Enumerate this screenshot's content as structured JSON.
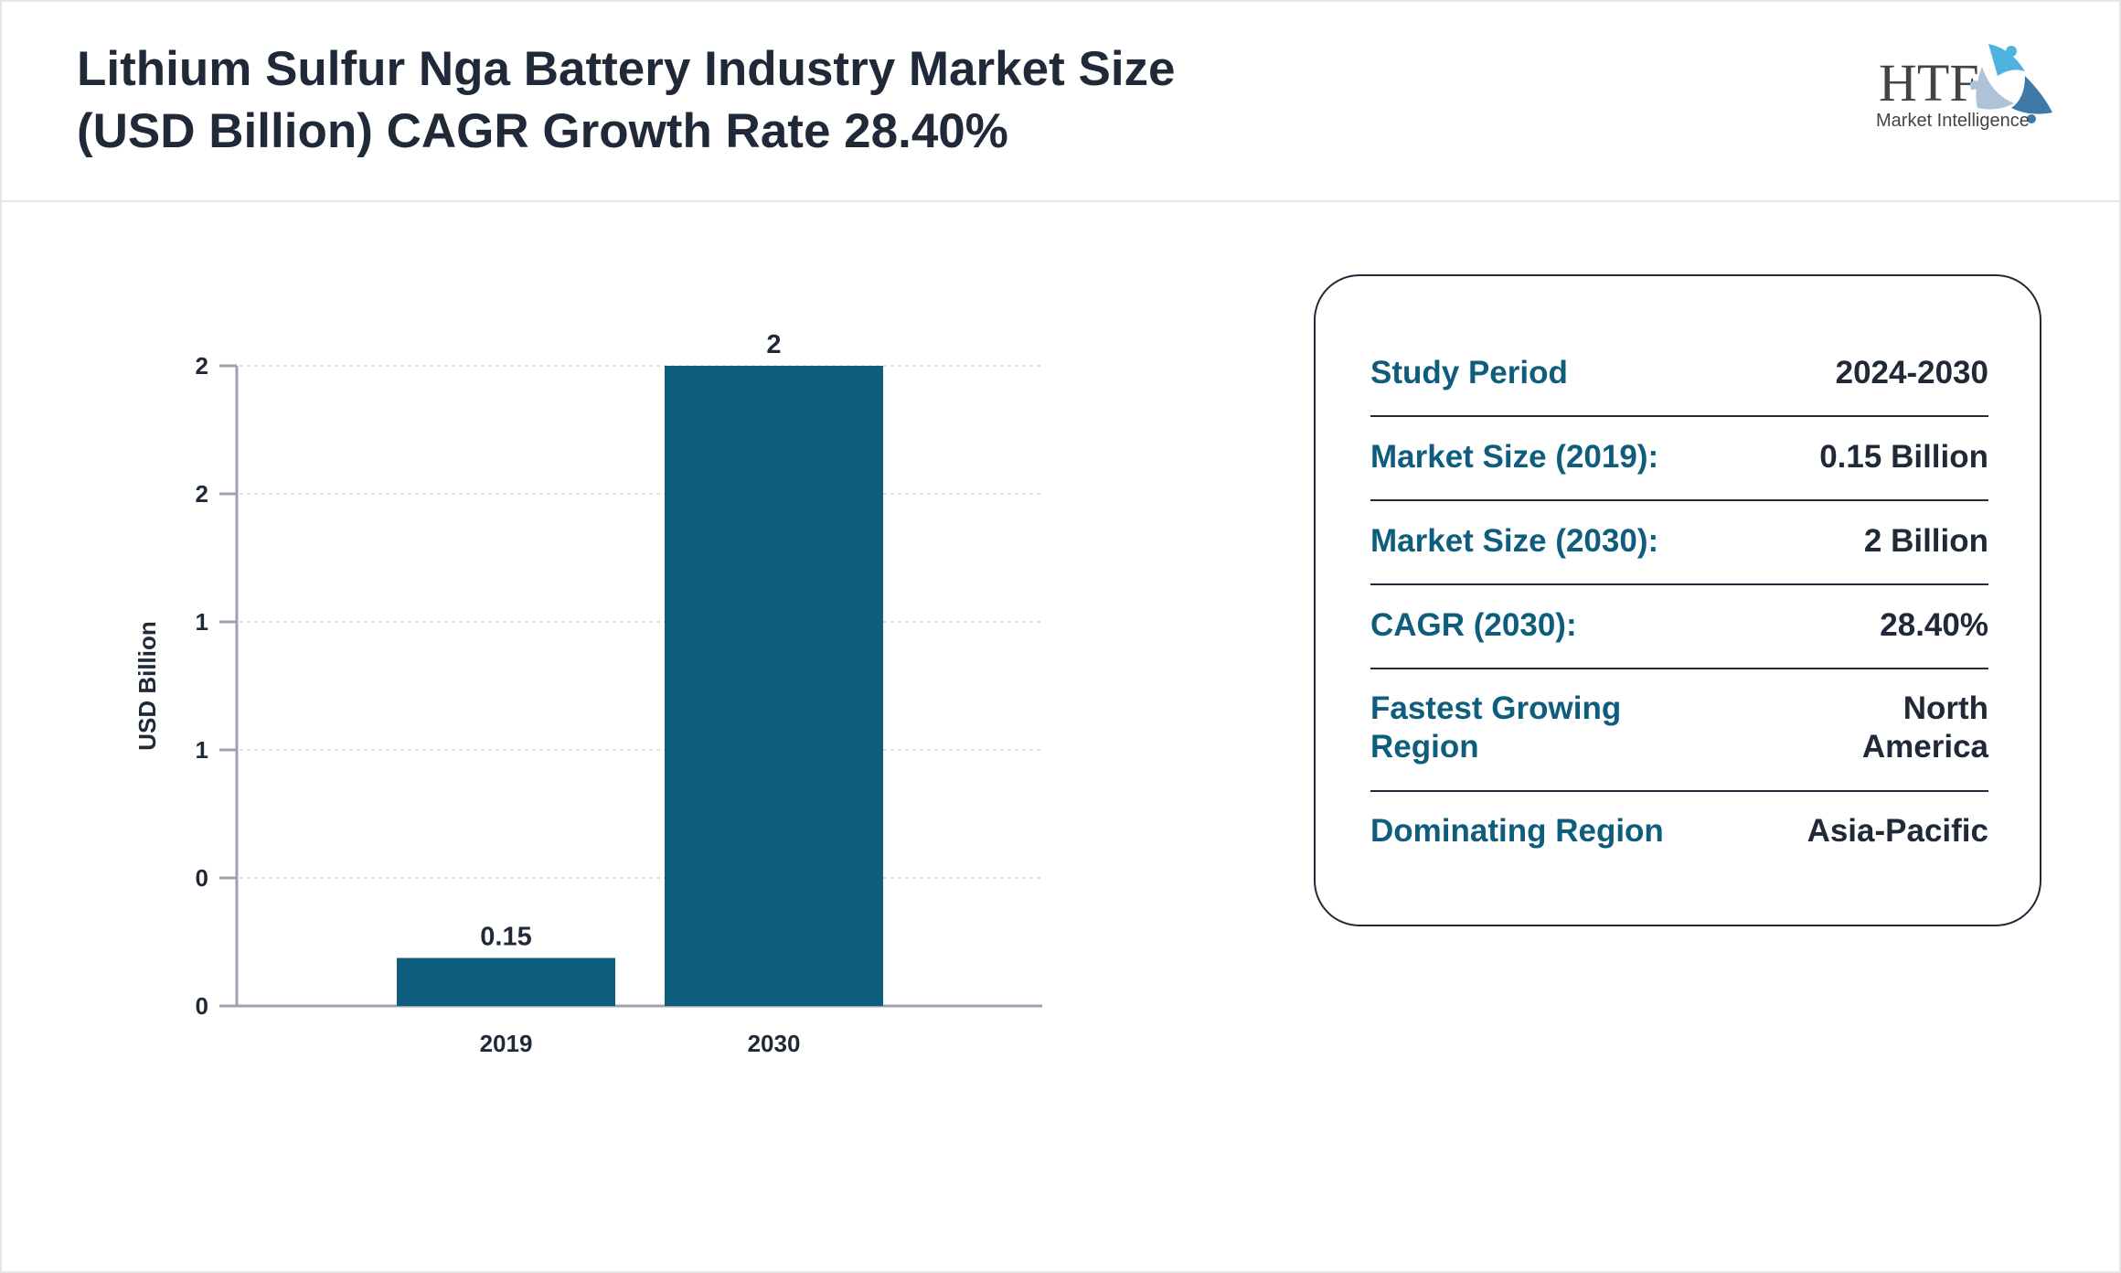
{
  "header": {
    "title_line1": "Lithium Sulfur Nga Battery Industry Market Size",
    "title_line2": "(USD Billion) CAGR Growth Rate 28.40%",
    "logo_text": "HTF",
    "logo_subtext": "Market Intelligence"
  },
  "chart_data": {
    "type": "bar",
    "categories": [
      "2019",
      "2030"
    ],
    "values": [
      0.15,
      2
    ],
    "data_labels": [
      "0.15",
      "2"
    ],
    "ylabel": "USD Billion",
    "ylim": [
      0,
      2
    ],
    "yticks": [
      0,
      0.4,
      0.8,
      1.2,
      1.6,
      2.0
    ],
    "ytick_labels": [
      "0",
      "0",
      "1",
      "1",
      "2",
      "2"
    ],
    "grid": true,
    "bar_color": "#0f5d7d"
  },
  "summary": {
    "rows": [
      {
        "label": "Study Period",
        "value": "2024-2030"
      },
      {
        "label": "Market Size (2019):",
        "value": "0.15 Billion"
      },
      {
        "label": "Market Size (2030):",
        "value": "2 Billion"
      },
      {
        "label": "CAGR (2030):",
        "value": "28.40%"
      },
      {
        "label": "Fastest Growing Region",
        "value": "North America"
      },
      {
        "label": "Dominating Region",
        "value": "Asia-Pacific"
      }
    ]
  }
}
